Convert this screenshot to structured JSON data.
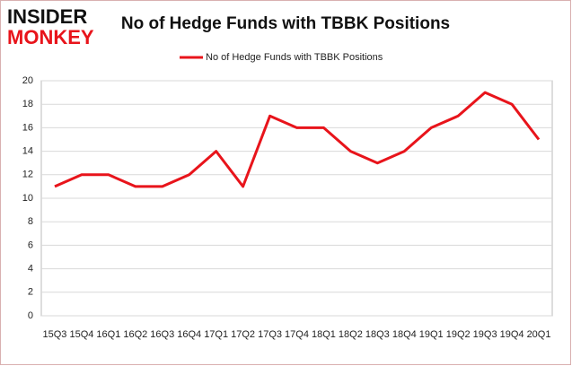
{
  "logo": {
    "line1": "INSIDER",
    "line2": "MONKEY"
  },
  "chart_data": {
    "type": "line",
    "title": "No of Hedge Funds with TBBK Positions",
    "categories": [
      "15Q3",
      "15Q4",
      "16Q1",
      "16Q2",
      "16Q3",
      "16Q4",
      "17Q1",
      "17Q2",
      "17Q3",
      "17Q4",
      "18Q1",
      "18Q2",
      "18Q3",
      "18Q4",
      "19Q1",
      "19Q2",
      "19Q3",
      "19Q4",
      "20Q1"
    ],
    "series": [
      {
        "name": "No of Hedge Funds with TBBK Positions",
        "color": "#e8141b",
        "values": [
          11,
          12,
          12,
          11,
          11,
          12,
          14,
          11,
          17,
          16,
          16,
          14,
          13,
          14,
          16,
          17,
          19,
          18,
          15
        ]
      }
    ],
    "ylim": [
      0,
      20
    ],
    "yticks": [
      0,
      2,
      4,
      6,
      8,
      10,
      12,
      14,
      16,
      18,
      20
    ],
    "grid": true,
    "legend": "top"
  }
}
